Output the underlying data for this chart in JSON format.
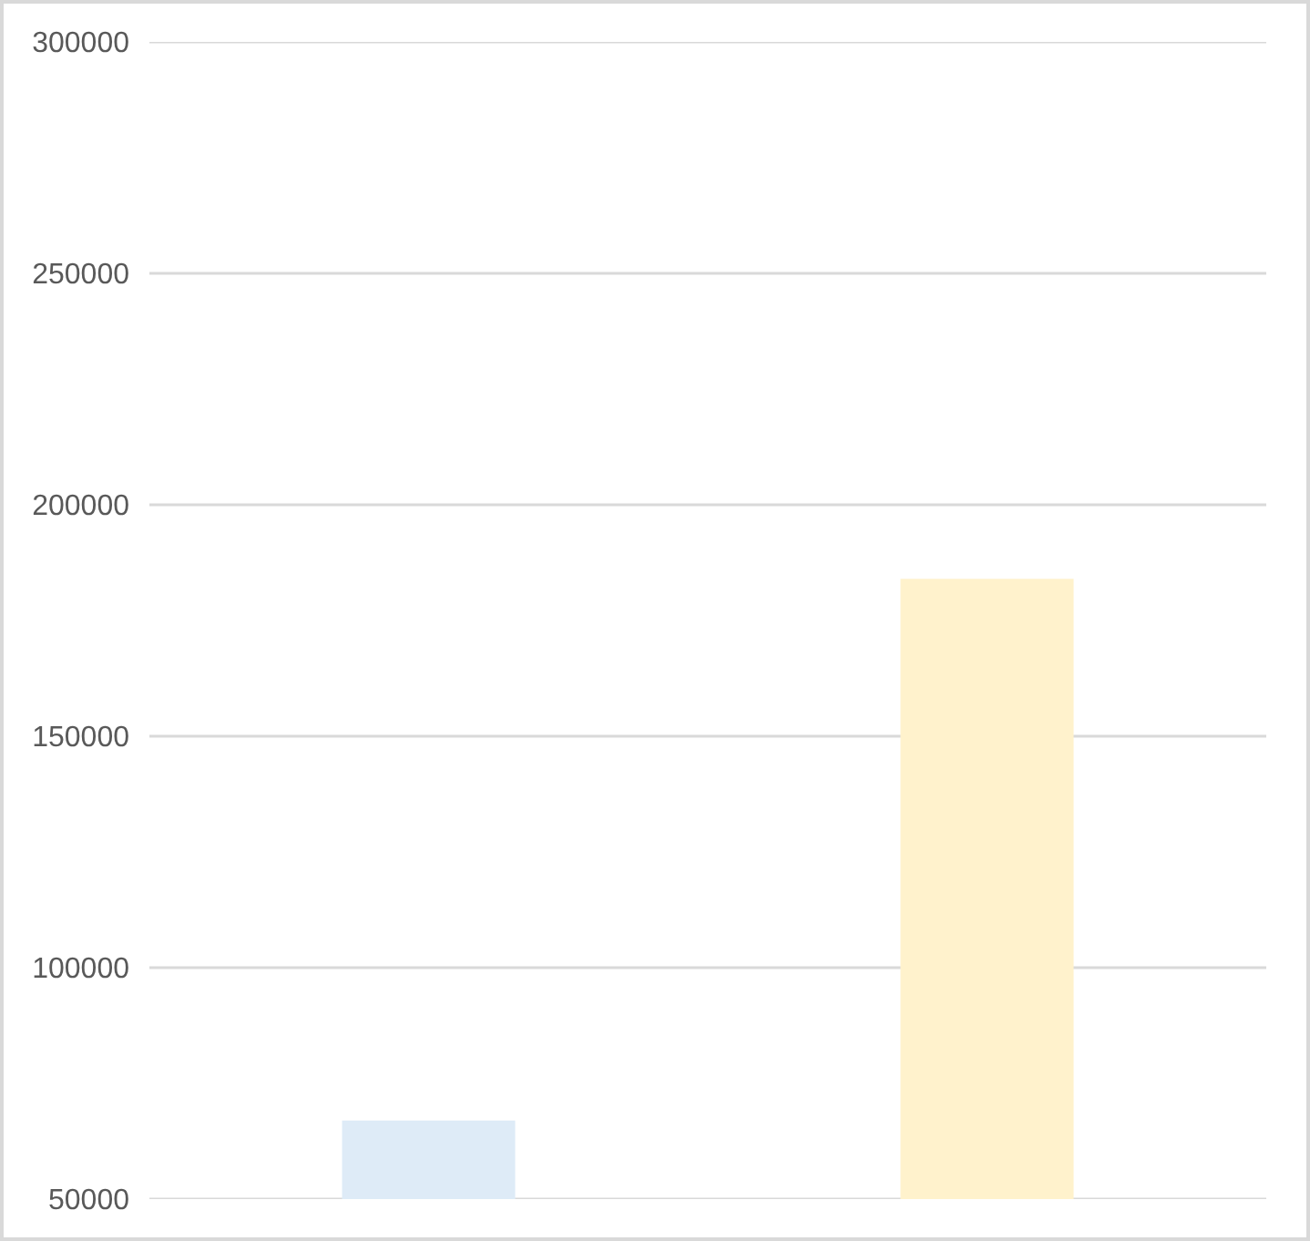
{
  "chart_data": {
    "type": "bar",
    "categories": [
      null,
      null
    ],
    "values": [
      67000,
      184000
    ],
    "colors": [
      "#deebf7",
      "#fff2cc"
    ],
    "ylim": [
      50000,
      300000
    ],
    "yticks": [
      50000,
      100000,
      150000,
      200000,
      250000,
      300000
    ],
    "grid": "y"
  }
}
